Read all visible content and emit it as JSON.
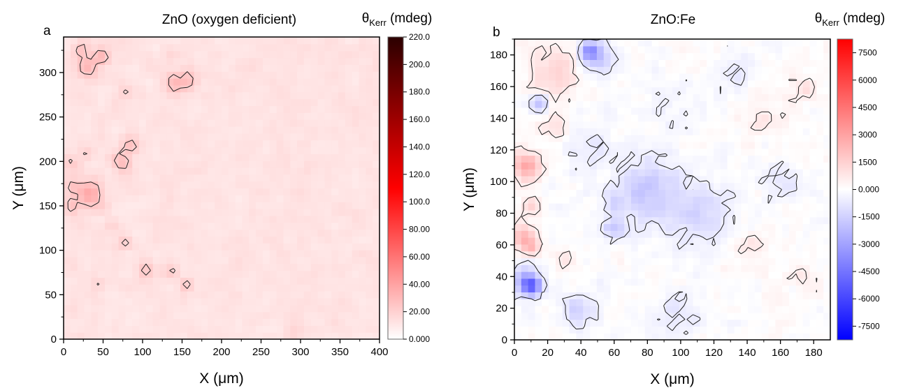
{
  "chart_data": [
    {
      "type": "heatmap",
      "panel_label": "a",
      "title": "ZnO (oxygen deficient)",
      "xlabel": "X (μm)",
      "ylabel": "Y (μm)",
      "xlim": [
        0,
        400
      ],
      "ylim": [
        0,
        340
      ],
      "xticks": [
        "0",
        "50",
        "100",
        "150",
        "200",
        "250",
        "300",
        "350",
        "400"
      ],
      "yticks": [
        "0",
        "50",
        "100",
        "150",
        "200",
        "250",
        "300"
      ],
      "colorbar": {
        "label_main": "θ",
        "label_sub": "Kerr",
        "label_unit": " (mdeg)",
        "range": [
          0,
          220
        ],
        "colors": [
          "#ffffff",
          "#ff0000",
          "#2b0000"
        ],
        "ticks": [
          "0.000",
          "20.00",
          "40.00",
          "60.00",
          "80.00",
          "100.0",
          "120.0",
          "140.0",
          "160.0",
          "180.0",
          "200.0",
          "220.0"
        ]
      },
      "background_level": 12,
      "features": [
        {
          "x": 22,
          "y": 327,
          "v": 38,
          "r": 6
        },
        {
          "x": 48,
          "y": 318,
          "v": 38,
          "r": 8
        },
        {
          "x": 30,
          "y": 308,
          "v": 36,
          "r": 12
        },
        {
          "x": 140,
          "y": 288,
          "v": 36,
          "r": 10
        },
        {
          "x": 158,
          "y": 292,
          "v": 36,
          "r": 9
        },
        {
          "x": 135,
          "y": 320,
          "v": 34,
          "r": 5
        },
        {
          "x": 80,
          "y": 277,
          "v": 34,
          "r": 5
        },
        {
          "x": 85,
          "y": 218,
          "v": 38,
          "r": 8
        },
        {
          "x": 73,
          "y": 200,
          "v": 38,
          "r": 9
        },
        {
          "x": 30,
          "y": 208,
          "v": 34,
          "r": 5
        },
        {
          "x": 12,
          "y": 197,
          "v": 36,
          "r": 6
        },
        {
          "x": 32,
          "y": 165,
          "v": 42,
          "r": 15
        },
        {
          "x": 12,
          "y": 172,
          "v": 34,
          "r": 6
        },
        {
          "x": 10,
          "y": 150,
          "v": 34,
          "r": 6
        },
        {
          "x": 48,
          "y": 150,
          "v": 34,
          "r": 5
        },
        {
          "x": 60,
          "y": 128,
          "v": 34,
          "r": 5
        },
        {
          "x": 78,
          "y": 108,
          "v": 34,
          "r": 6
        },
        {
          "x": 105,
          "y": 78,
          "v": 36,
          "r": 7
        },
        {
          "x": 136,
          "y": 76,
          "v": 34,
          "r": 6
        },
        {
          "x": 156,
          "y": 62,
          "v": 34,
          "r": 5
        },
        {
          "x": 42,
          "y": 62,
          "v": 32,
          "r": 4
        },
        {
          "x": 290,
          "y": 8,
          "v": 32,
          "r": 4
        }
      ],
      "contour_levels": [
        24
      ]
    },
    {
      "type": "heatmap",
      "panel_label": "b",
      "title": "ZnO:Fe",
      "xlabel": "X (μm)",
      "ylabel": "Y (μm)",
      "xlim": [
        0,
        190
      ],
      "ylim": [
        0,
        190
      ],
      "xticks": [
        "0",
        "20",
        "40",
        "60",
        "80",
        "100",
        "120",
        "140",
        "160",
        "180"
      ],
      "yticks": [
        "0",
        "20",
        "40",
        "60",
        "80",
        "100",
        "120",
        "140",
        "160",
        "180"
      ],
      "colorbar": {
        "label_main": "θ",
        "label_sub": "Kerr",
        "label_unit": " (mdeg)",
        "range": [
          -8250,
          8250
        ],
        "colors": [
          "#0000ff",
          "#ffffff",
          "#ff0000"
        ],
        "ticks": [
          "-7500",
          "-6000",
          "-4500",
          "-3000",
          "-1500",
          "0.000",
          "1500",
          "3000",
          "4500",
          "6000",
          "7500"
        ]
      },
      "background_level": 0,
      "features": [
        {
          "x": 8,
          "y": 110,
          "v": 3200,
          "r": 8
        },
        {
          "x": 5,
          "y": 65,
          "v": 2500,
          "r": 8
        },
        {
          "x": 10,
          "y": 58,
          "v": 2800,
          "r": 4
        },
        {
          "x": 10,
          "y": 85,
          "v": 2600,
          "r": 4
        },
        {
          "x": 10,
          "y": 34,
          "v": -5800,
          "r": 5
        },
        {
          "x": 6,
          "y": 38,
          "v": -2400,
          "r": 9
        },
        {
          "x": 25,
          "y": 170,
          "v": 1500,
          "r": 15
        },
        {
          "x": 22,
          "y": 135,
          "v": 1200,
          "r": 8
        },
        {
          "x": 45,
          "y": 183,
          "v": -3800,
          "r": 5
        },
        {
          "x": 50,
          "y": 178,
          "v": -2000,
          "r": 9
        },
        {
          "x": 15,
          "y": 150,
          "v": -3000,
          "r": 5
        },
        {
          "x": 60,
          "y": 70,
          "v": -2400,
          "r": 6
        },
        {
          "x": 60,
          "y": 85,
          "v": -1500,
          "r": 6
        },
        {
          "x": 80,
          "y": 95,
          "v": -1800,
          "r": 18
        },
        {
          "x": 110,
          "y": 80,
          "v": -1300,
          "r": 20
        },
        {
          "x": 45,
          "y": 120,
          "v": -900,
          "r": 12
        },
        {
          "x": 40,
          "y": 20,
          "v": -1500,
          "r": 10
        },
        {
          "x": 30,
          "y": 50,
          "v": 900,
          "r": 6
        },
        {
          "x": 100,
          "y": 15,
          "v": -1000,
          "r": 12
        },
        {
          "x": 140,
          "y": 60,
          "v": 800,
          "r": 12
        },
        {
          "x": 150,
          "y": 140,
          "v": 600,
          "r": 14
        },
        {
          "x": 175,
          "y": 160,
          "v": 900,
          "r": 8
        },
        {
          "x": 160,
          "y": 100,
          "v": -700,
          "r": 12
        },
        {
          "x": 130,
          "y": 170,
          "v": -700,
          "r": 12
        },
        {
          "x": 95,
          "y": 145,
          "v": -500,
          "r": 18
        },
        {
          "x": 175,
          "y": 40,
          "v": 600,
          "r": 10
        }
      ],
      "contour_levels": [
        -600,
        600
      ]
    }
  ]
}
